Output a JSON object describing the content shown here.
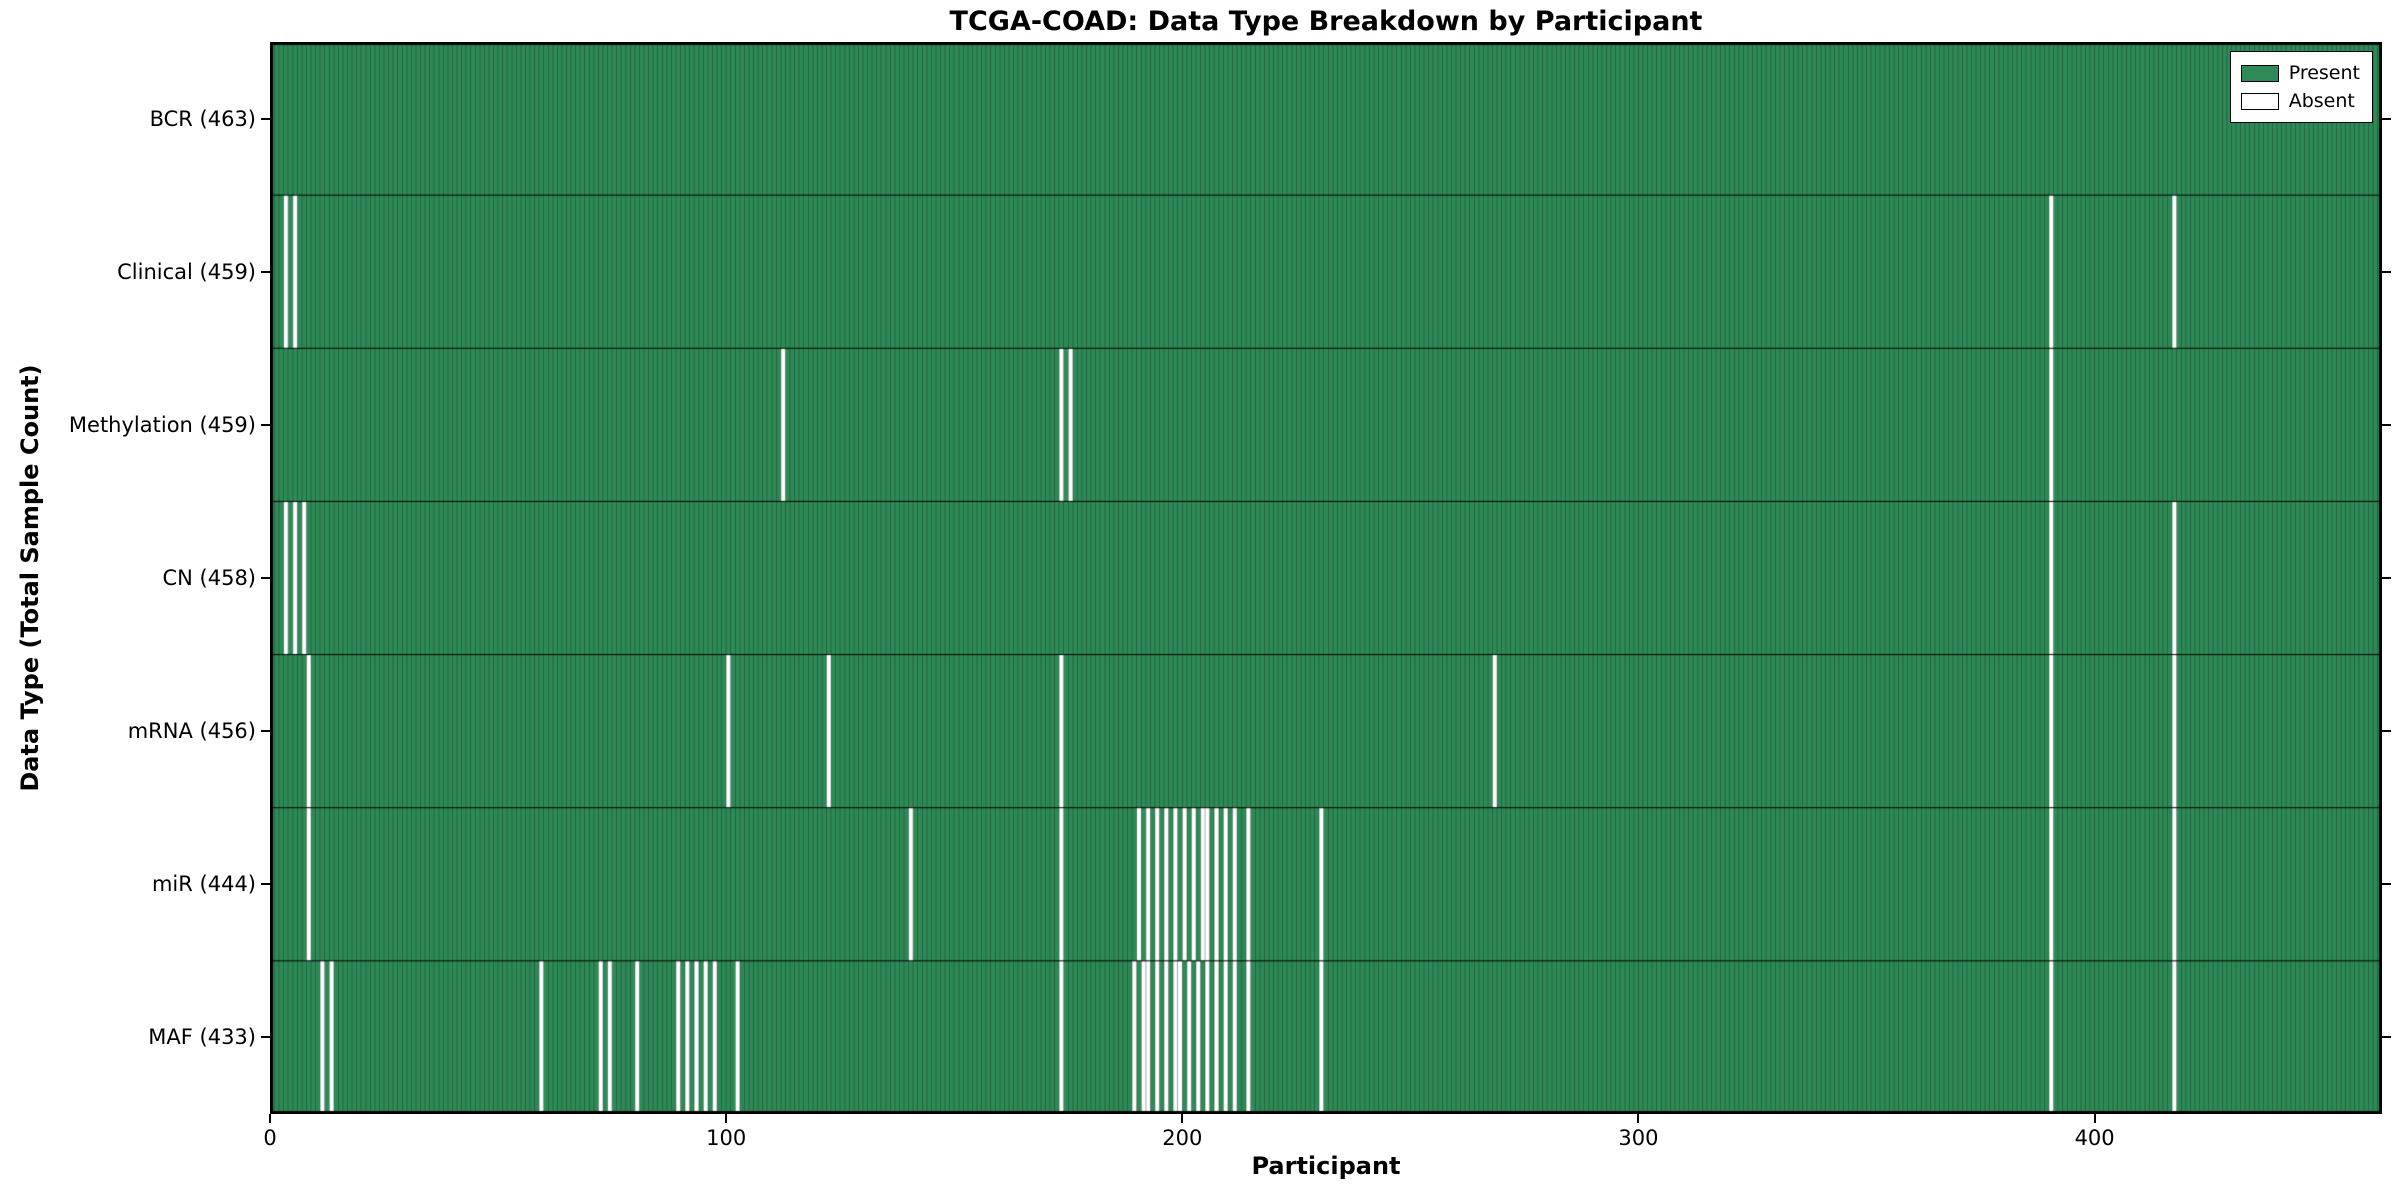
{
  "chart_data": {
    "type": "heatmap",
    "title": "TCGA-COAD: Data Type Breakdown by Participant",
    "xlabel": "Participant",
    "ylabel": "Data Type (Total Sample Count)",
    "n_participants": 463,
    "x_range": [
      0,
      463
    ],
    "x_ticks": [
      0,
      100,
      200,
      300,
      400
    ],
    "grid": false,
    "legend": {
      "position": "upper right",
      "present_label": "Present",
      "absent_label": "Absent"
    },
    "colors": {
      "present": "#2e8b57",
      "absent": "#ffffff",
      "bar_edge": "rgba(0,0,0,0.45)",
      "row_divider": "#000000",
      "spine": "#000000"
    },
    "rows": [
      {
        "label": "BCR (463)",
        "data_type": "BCR",
        "present_count": 463,
        "absent_participants": []
      },
      {
        "label": "Clinical (459)",
        "data_type": "Clinical",
        "present_count": 459,
        "absent_participants": [
          3,
          5,
          390,
          417
        ]
      },
      {
        "label": "Methylation (459)",
        "data_type": "Methylation",
        "present_count": 459,
        "absent_participants": [
          112,
          173,
          175,
          390
        ]
      },
      {
        "label": "CN (458)",
        "data_type": "CN",
        "present_count": 458,
        "absent_participants": [
          3,
          5,
          7,
          390,
          417
        ]
      },
      {
        "label": "mRNA (456)",
        "data_type": "mRNA",
        "present_count": 456,
        "absent_participants": [
          8,
          100,
          122,
          173,
          268,
          390,
          417
        ]
      },
      {
        "label": "miR (444)",
        "data_type": "miR",
        "present_count": 444,
        "absent_participants": [
          8,
          140,
          173,
          190,
          192,
          194,
          196,
          198,
          200,
          202,
          204,
          205,
          207,
          209,
          211,
          214,
          230,
          390,
          417
        ]
      },
      {
        "label": "MAF (433)",
        "data_type": "MAF",
        "present_count": 433,
        "absent_participants": [
          11,
          13,
          59,
          72,
          74,
          80,
          89,
          91,
          93,
          95,
          97,
          102,
          173,
          189,
          191,
          192,
          194,
          196,
          198,
          199,
          201,
          203,
          205,
          207,
          209,
          211,
          214,
          230,
          390,
          417
        ]
      }
    ]
  }
}
